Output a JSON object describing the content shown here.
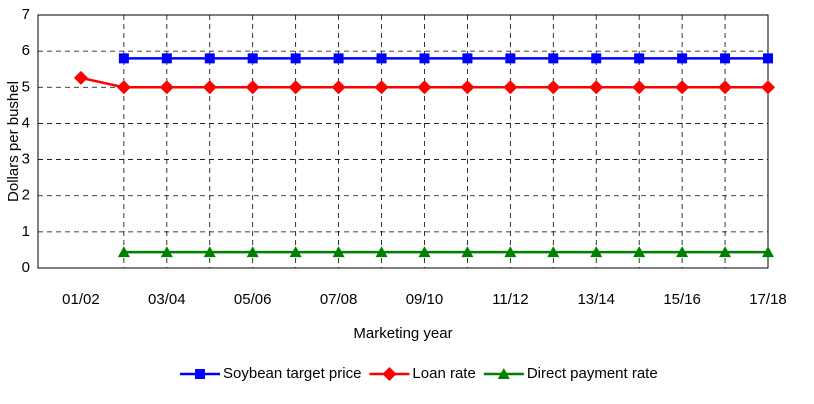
{
  "chart_data": {
    "type": "line",
    "x_label": "Marketing year",
    "y_label": "Dollars per bushel",
    "categories": [
      "01/02",
      null,
      "03/04",
      null,
      "05/06",
      null,
      "07/08",
      null,
      "09/10",
      null,
      "11/12",
      null,
      "13/14",
      null,
      "15/16",
      null,
      "17/18"
    ],
    "series": [
      {
        "name": "Soybean target price",
        "color": "#0000ff",
        "marker": "square",
        "values": [
          null,
          5.8,
          5.8,
          5.8,
          5.8,
          5.8,
          5.8,
          5.8,
          5.8,
          5.8,
          5.8,
          5.8,
          5.8,
          5.8,
          5.8,
          5.8,
          5.8
        ]
      },
      {
        "name": "Loan rate",
        "color": "#ff0000",
        "marker": "diamond",
        "values": [
          5.26,
          5.0,
          5.0,
          5.0,
          5.0,
          5.0,
          5.0,
          5.0,
          5.0,
          5.0,
          5.0,
          5.0,
          5.0,
          5.0,
          5.0,
          5.0,
          5.0
        ]
      },
      {
        "name": "Direct payment rate",
        "color": "#008000",
        "marker": "triangle",
        "values": [
          null,
          0.44,
          0.44,
          0.44,
          0.44,
          0.44,
          0.44,
          0.44,
          0.44,
          0.44,
          0.44,
          0.44,
          0.44,
          0.44,
          0.44,
          0.44,
          0.44
        ]
      }
    ],
    "ylim": [
      0,
      7
    ],
    "yticks": [
      0,
      1,
      2,
      3,
      4,
      5,
      6,
      7
    ],
    "grid": true,
    "legend": "bottom"
  }
}
